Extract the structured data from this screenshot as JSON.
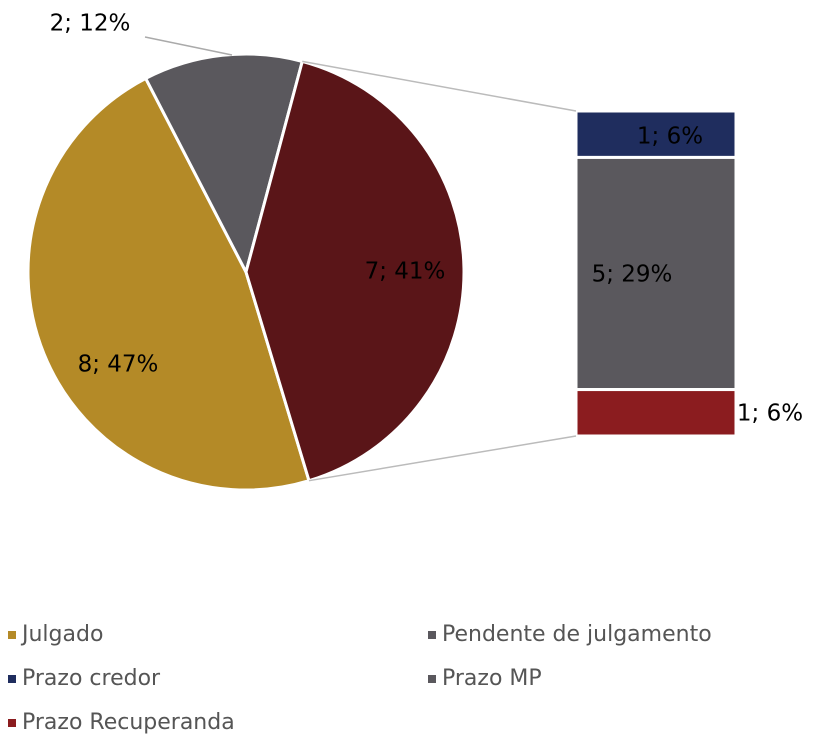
{
  "chart_data": {
    "type": "pie",
    "pie": {
      "categories": [
        "Julgado",
        "Pendente de julgamento",
        null
      ],
      "colors": [
        "#b48a27",
        "#5a585d",
        "#5a1518"
      ],
      "values": [
        8,
        2,
        7
      ],
      "percents": [
        47,
        12,
        41
      ],
      "value_labels": [
        "8; 47%",
        "2; 12%",
        "7; 41%"
      ]
    },
    "bar": {
      "categories": [
        "Prazo credor",
        "Prazo MP",
        "Prazo Recuperanda"
      ],
      "colors": [
        "#1f2d5e",
        "#5a585d",
        "#8b1c1f"
      ],
      "values": [
        1,
        5,
        1
      ],
      "percents": [
        6,
        29,
        6
      ],
      "value_labels": [
        "1; 6%",
        "5; 29%",
        "1; 6%"
      ]
    }
  }
}
